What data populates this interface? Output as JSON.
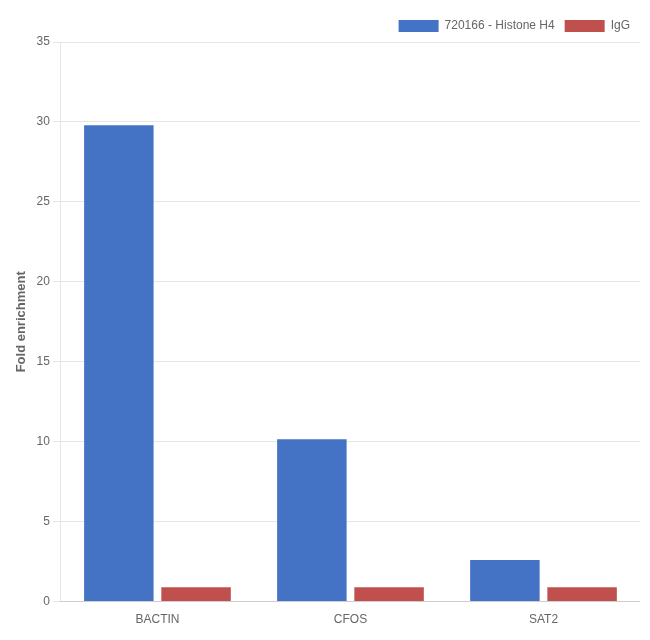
{
  "chart_data": {
    "type": "bar",
    "categories": [
      "BACTIN",
      "CFOS",
      "SAT2"
    ],
    "series": [
      {
        "name": "720166 - Histone H4",
        "color": "#4472C4",
        "values": [
          29.8,
          10.15,
          2.6
        ]
      },
      {
        "name": "IgG",
        "color": "#C0504D",
        "values": [
          0.9,
          0.9,
          0.9
        ]
      }
    ],
    "ylabel": "Fold enrichment",
    "ylim": [
      0,
      35
    ],
    "yticks": [
      0,
      5,
      10,
      15,
      20,
      25,
      30,
      35
    ],
    "grid": true,
    "legend": "upper right"
  }
}
